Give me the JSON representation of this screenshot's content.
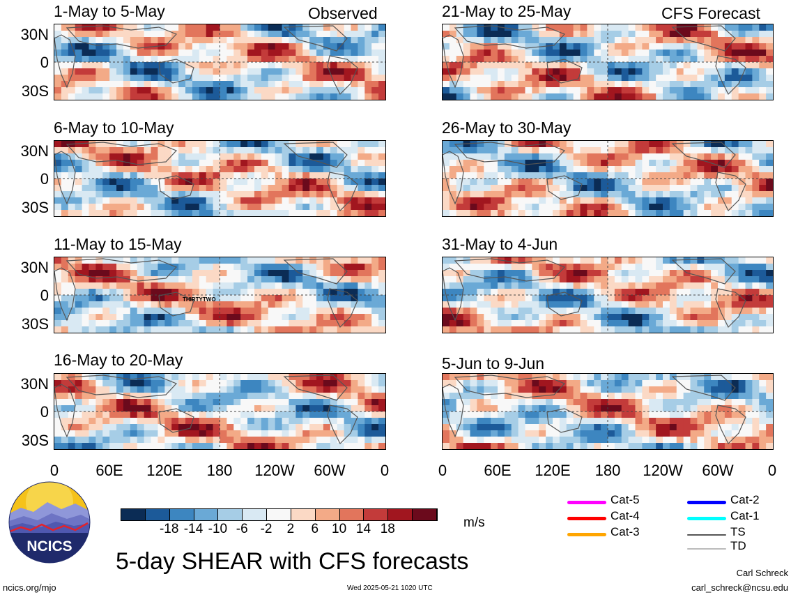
{
  "header": {
    "observed_label": "Observed",
    "forecast_label": "CFS Forecast"
  },
  "panels": [
    {
      "title": "1-May to 5-May"
    },
    {
      "title": "6-May to 10-May"
    },
    {
      "title": "11-May to 15-May"
    },
    {
      "title": "16-May to 20-May"
    },
    {
      "title": "21-May to 25-May"
    },
    {
      "title": "26-May to 30-May"
    },
    {
      "title": "31-May to 4-Jun"
    },
    {
      "title": "5-Jun to 9-Jun"
    }
  ],
  "lat_ticks": [
    "30N",
    "0",
    "30S"
  ],
  "lon_ticks": [
    "0",
    "60E",
    "120E",
    "180",
    "120W",
    "60W",
    "0"
  ],
  "storm_label": "THIRTYTWO",
  "colorbar": {
    "colors": [
      "#0b2c55",
      "#1c5a99",
      "#3d86c0",
      "#6aa9d6",
      "#a6cde6",
      "#d9e9f3",
      "#f8f8f8",
      "#fbd9c5",
      "#f3aa87",
      "#e2755c",
      "#c33b3a",
      "#a1161f",
      "#6b0a1c"
    ],
    "tick_labels": [
      "-18",
      "-14",
      "-10",
      "-6",
      "-2",
      "2",
      "6",
      "10",
      "14",
      "18"
    ],
    "unit": "m/s"
  },
  "legend": [
    {
      "label": "Cat-5",
      "color": "#ff00ff"
    },
    {
      "label": "Cat-4",
      "color": "#ff0000"
    },
    {
      "label": "Cat-3",
      "color": "#ffa500"
    },
    {
      "label": "Cat-2",
      "color": "#0000ff"
    },
    {
      "label": "Cat-1",
      "color": "#00ffff"
    },
    {
      "label": "TS",
      "color": "#555555"
    },
    {
      "label": "TD",
      "color": "#bbbbbb"
    }
  ],
  "logo": {
    "text": "NCICS"
  },
  "main_title": "5-day SHEAR with CFS forecasts",
  "footer": {
    "url": "ncics.org/mjo",
    "timestamp": "Wed 2025-05-21 1020 UTC",
    "author": "Carl Schreck",
    "email": "carl_schreck@ncsu.edu"
  }
}
